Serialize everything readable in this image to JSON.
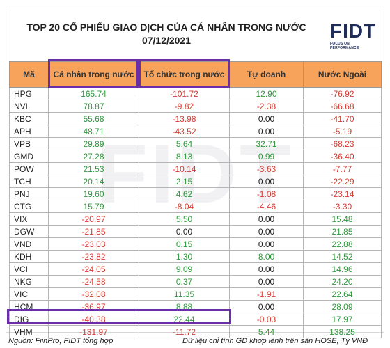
{
  "title_line1": "TOP 20 CỔ PHIẾU GIAO DỊCH CỦA CÁ NHÂN TRONG NƯỚC",
  "title_line2": "07/12/2021",
  "logo": {
    "text": "FIDT",
    "tagline": "FOCUS ON PERFORMANCE"
  },
  "columns": [
    "Mã",
    "Cá nhân trong nước",
    "Tổ chức trong nước",
    "Tự doanh",
    "Nước Ngoài"
  ],
  "rows": [
    {
      "code": "HPG",
      "values": [
        "165.74",
        "-101.72",
        "12.90",
        "-76.92"
      ]
    },
    {
      "code": "NVL",
      "values": [
        "78.87",
        "-9.82",
        "-2.38",
        "-66.68"
      ]
    },
    {
      "code": "KBC",
      "values": [
        "55.68",
        "-13.98",
        "0.00",
        "-41.70"
      ]
    },
    {
      "code": "APH",
      "values": [
        "48.71",
        "-43.52",
        "0.00",
        "-5.19"
      ]
    },
    {
      "code": "VPB",
      "values": [
        "29.89",
        "5.64",
        "32.71",
        "-68.23"
      ]
    },
    {
      "code": "GMD",
      "values": [
        "27.28",
        "8.13",
        "0.99",
        "-36.40"
      ]
    },
    {
      "code": "POW",
      "values": [
        "21.53",
        "-10.14",
        "-3.63",
        "-7.77"
      ]
    },
    {
      "code": "TCH",
      "values": [
        "20.14",
        "2.15",
        "0.00",
        "-22.29"
      ]
    },
    {
      "code": "PNJ",
      "values": [
        "19.60",
        "4.62",
        "-1.08",
        "-23.14"
      ]
    },
    {
      "code": "CTG",
      "values": [
        "15.79",
        "-8.04",
        "-4.46",
        "-3.30"
      ]
    },
    {
      "code": "VIX",
      "values": [
        "-20.97",
        "5.50",
        "0.00",
        "15.48"
      ]
    },
    {
      "code": "DGW",
      "values": [
        "-21.85",
        "0.00",
        "0.00",
        "21.85"
      ]
    },
    {
      "code": "VND",
      "values": [
        "-23.03",
        "0.15",
        "0.00",
        "22.88"
      ]
    },
    {
      "code": "KDH",
      "values": [
        "-23.82",
        "1.30",
        "8.00",
        "14.52"
      ]
    },
    {
      "code": "VCI",
      "values": [
        "-24.05",
        "9.09",
        "0.00",
        "14.96"
      ]
    },
    {
      "code": "NKG",
      "values": [
        "-24.58",
        "0.37",
        "0.00",
        "24.20"
      ]
    },
    {
      "code": "VIC",
      "values": [
        "-32.08",
        "11.35",
        "-1.91",
        "22.64"
      ]
    },
    {
      "code": "HCM",
      "values": [
        "-36.97",
        "8.88",
        "0.00",
        "28.09"
      ]
    },
    {
      "code": "DIG",
      "values": [
        "-40.38",
        "22.44",
        "-0.03",
        "17.97"
      ]
    },
    {
      "code": "VHM",
      "values": [
        "-131.97",
        "-11.72",
        "5.44",
        "138.25"
      ]
    }
  ],
  "footer_left": "Nguồn: FiinPro, FIDT tổng hợp",
  "footer_right": "Dữ liệu chỉ tính GD khớp lệnh trên sàn HOSE, Tỷ VNĐ",
  "colors": {
    "header_bg": "#f7a35c",
    "positive": "#2e9a3c",
    "negative": "#d63b31",
    "highlight": "#6a2fa8"
  }
}
